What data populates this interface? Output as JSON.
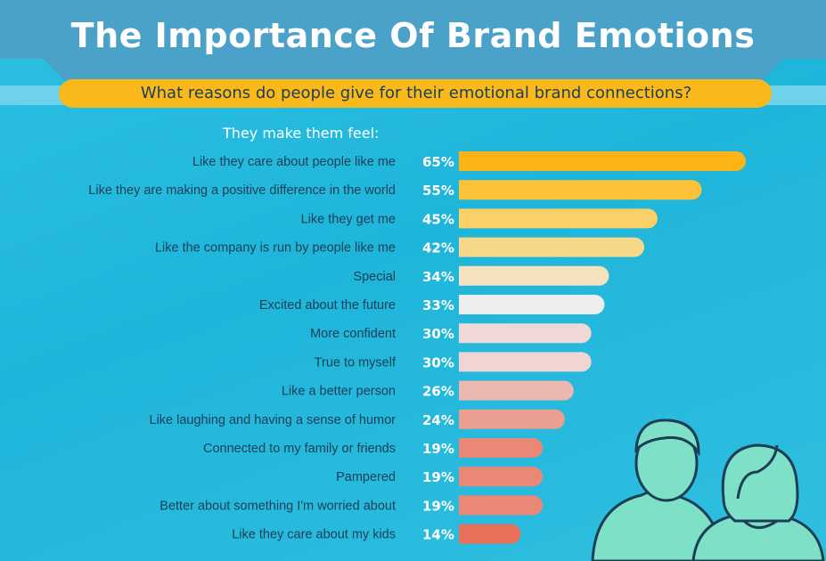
{
  "header": {
    "title": "The Importance Of Brand Emotions",
    "subtitle": "What reasons do people give for their emotional brand connections?",
    "section_label": "They make them feel:"
  },
  "colors": {
    "background": "#2cc1e2",
    "banner": "#4aa2c9",
    "subtitle_band": "#f9b91a",
    "people_fill": "#7fe0c8",
    "people_outline": "#1c3f56"
  },
  "chart_data": {
    "type": "bar",
    "orientation": "horizontal",
    "categories": [
      "Like they care about people like me",
      "Like they are making a positive difference in the world",
      "Like they get me",
      "Like the company is run by people like me",
      "Special",
      "Excited about the future",
      "More confident",
      "True to myself",
      "Like a better person",
      "Like laughing and having a sense of humor",
      "Connected to my family or friends",
      "Pampered",
      "Better about something I'm worried about",
      "Like they care about my kids"
    ],
    "values": [
      65,
      55,
      45,
      42,
      34,
      33,
      30,
      30,
      26,
      24,
      19,
      19,
      19,
      14
    ],
    "value_labels": [
      "65%",
      "55%",
      "45%",
      "42%",
      "34%",
      "33%",
      "30%",
      "30%",
      "26%",
      "24%",
      "19%",
      "19%",
      "19%",
      "14%"
    ],
    "bar_colors": [
      "#fbb316",
      "#fcc33a",
      "#fbd067",
      "#f7d88a",
      "#f3e2bd",
      "#eeeeee",
      "#f0d8d6",
      "#f0d5d3",
      "#ebb8b1",
      "#ea9f92",
      "#ea8875",
      "#ea8875",
      "#ea8875",
      "#e8705a"
    ],
    "xlim": [
      0,
      65
    ],
    "grid": false,
    "legend": "none"
  }
}
